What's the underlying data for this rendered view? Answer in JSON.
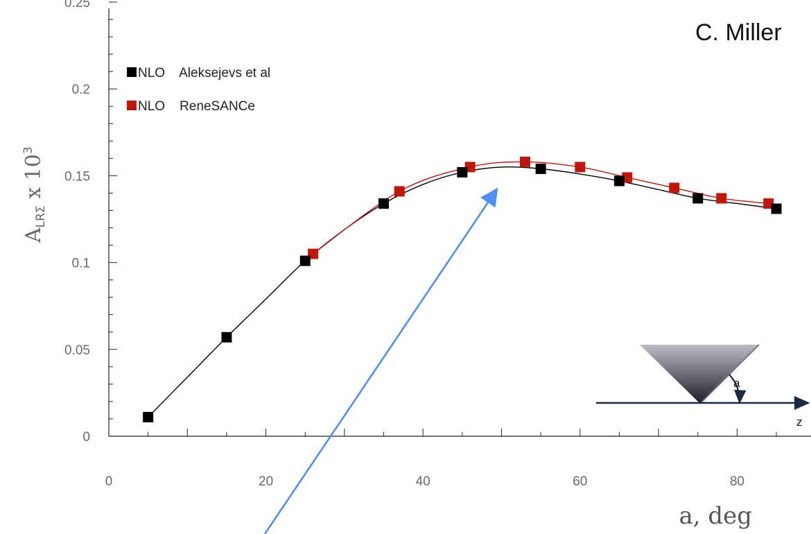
{
  "author_note": "C. Miller",
  "chart_data": {
    "type": "line",
    "xlabel": "a, deg",
    "ylabel": {
      "main": "A",
      "subscript": "LRΣ",
      "rest": " x 10",
      "superscript": "3"
    },
    "xlim": [
      0,
      90
    ],
    "ylim": [
      0,
      0.25
    ],
    "x_ticks": [
      "0",
      "20",
      "40",
      "60",
      "80"
    ],
    "y_ticks": [
      "0",
      "0.05",
      "0.1",
      "0.15",
      "0.2",
      "0.25"
    ],
    "grid": false,
    "legend_position": "top-left",
    "series": [
      {
        "name": "NLO    Aleksejevs et al",
        "color": "#000000",
        "x": [
          5,
          15,
          25,
          35,
          45,
          55,
          65,
          75,
          85
        ],
        "y": [
          0.011,
          0.057,
          0.101,
          0.134,
          0.152,
          0.154,
          0.147,
          0.137,
          0.131
        ]
      },
      {
        "name": "NLO    ReneSANCe",
        "color": "#c0160c",
        "x": [
          26,
          37,
          46,
          53,
          60,
          66,
          72,
          78,
          84
        ],
        "y": [
          0.105,
          0.141,
          0.155,
          0.158,
          0.155,
          0.149,
          0.143,
          0.137,
          0.134
        ]
      }
    ],
    "curve": {
      "x": [
        5,
        10,
        15,
        20,
        25,
        30,
        35,
        40,
        45,
        50,
        55,
        60,
        65,
        70,
        75,
        80,
        85
      ],
      "y": [
        0.011,
        0.034,
        0.057,
        0.079,
        0.101,
        0.119,
        0.134,
        0.145,
        0.152,
        0.155,
        0.154,
        0.151,
        0.147,
        0.142,
        0.137,
        0.134,
        0.131
      ]
    },
    "inset": {
      "angle_label": "a",
      "axis_label": "z"
    },
    "annotation_arrow_color": "#4f8ff0"
  }
}
